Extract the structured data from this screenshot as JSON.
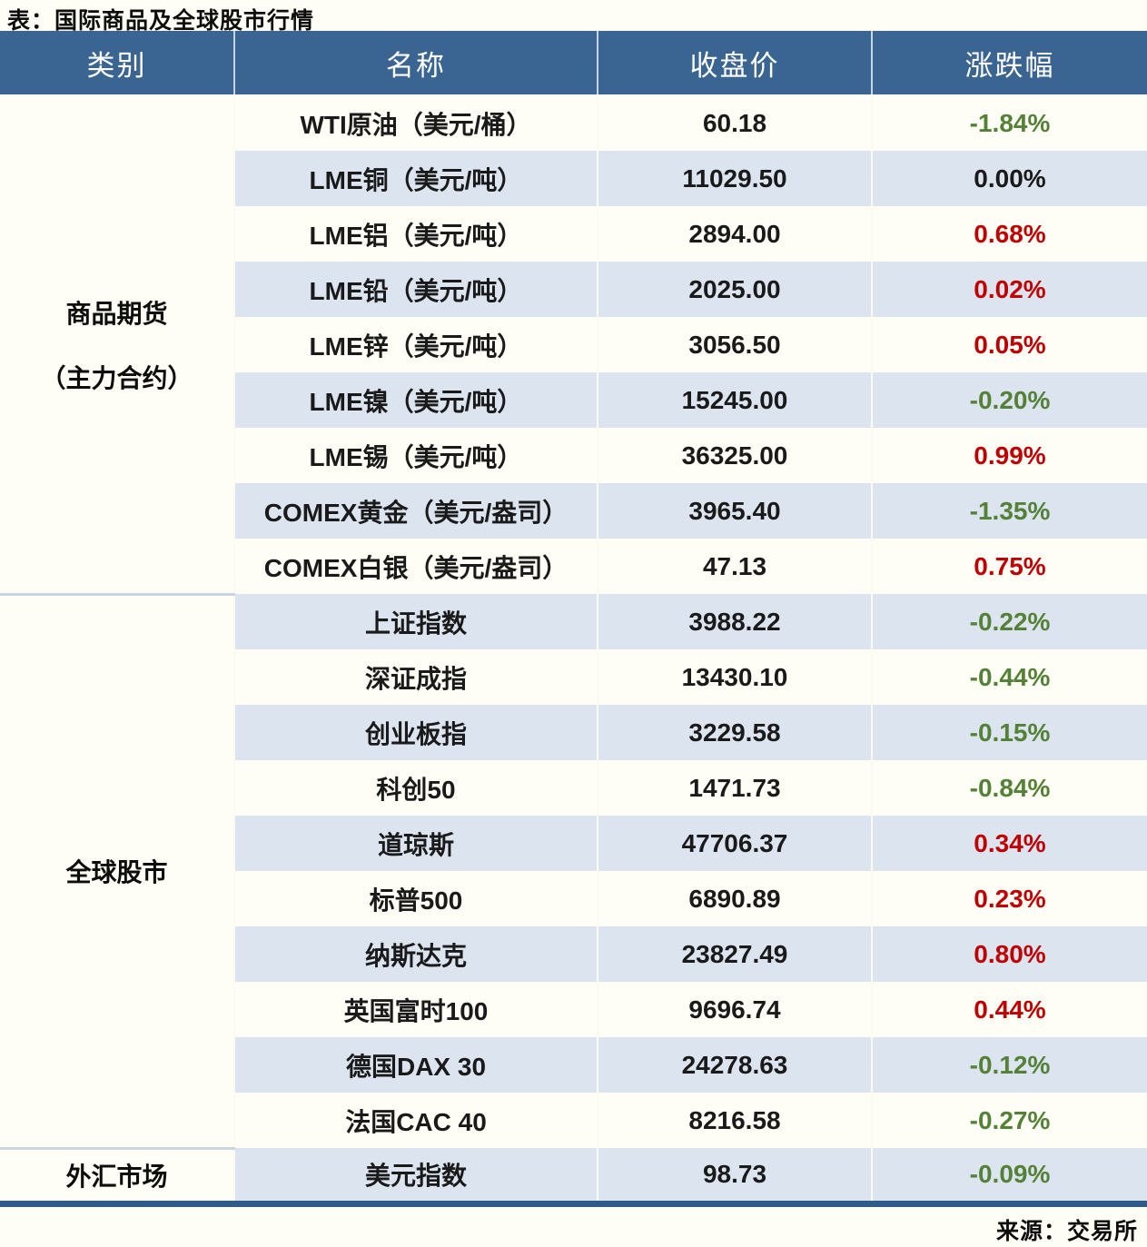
{
  "title": "表：国际商品及全球股市行情",
  "source": "来源：交易所",
  "columns": {
    "category": "类别",
    "name": "名称",
    "close": "收盘价",
    "change": "涨跌幅"
  },
  "category_labels": {
    "commodities": [
      "商品期货",
      "（主力合约）"
    ],
    "stocks": "全球股市",
    "forex": "外汇市场"
  },
  "colors": {
    "up_red": "#C00000",
    "down_green": "#538135",
    "flat_black": "#1A1A1A",
    "header_bg": "#3A6491",
    "header_text": "#FFFFFF",
    "row_alt_bg": "#DCE4F0",
    "row_bg": "#FFFEF6",
    "section_divider": "#C8D4E4",
    "bottom_border": "#2F5B8C"
  },
  "chart_data": {
    "type": "table",
    "title": "国际商品及全球股市行情",
    "columns": [
      "类别",
      "名称",
      "收盘价",
      "涨跌幅"
    ],
    "sections": [
      {
        "category": "商品期货（主力合约）",
        "row_count": 9
      },
      {
        "category": "全球股市",
        "row_count": 10
      },
      {
        "category": "外汇市场",
        "row_count": 1
      }
    ],
    "rows": [
      {
        "category": "商品期货（主力合约）",
        "name": "WTI原油（美元/桶）",
        "close": "60.18",
        "change": "-1.84%",
        "direction": "down"
      },
      {
        "category": "商品期货（主力合约）",
        "name": "LME铜（美元/吨）",
        "close": "11029.50",
        "change": "0.00%",
        "direction": "flat"
      },
      {
        "category": "商品期货（主力合约）",
        "name": "LME铝（美元/吨）",
        "close": "2894.00",
        "change": "0.68%",
        "direction": "up"
      },
      {
        "category": "商品期货（主力合约）",
        "name": "LME铅（美元/吨）",
        "close": "2025.00",
        "change": "0.02%",
        "direction": "up"
      },
      {
        "category": "商品期货（主力合约）",
        "name": "LME锌（美元/吨）",
        "close": "3056.50",
        "change": "0.05%",
        "direction": "up"
      },
      {
        "category": "商品期货（主力合约）",
        "name": "LME镍（美元/吨）",
        "close": "15245.00",
        "change": "-0.20%",
        "direction": "down"
      },
      {
        "category": "商品期货（主力合约）",
        "name": "LME锡（美元/吨）",
        "close": "36325.00",
        "change": "0.99%",
        "direction": "up"
      },
      {
        "category": "商品期货（主力合约）",
        "name": "COMEX黄金（美元/盎司）",
        "close": "3965.40",
        "change": "-1.35%",
        "direction": "down"
      },
      {
        "category": "商品期货（主力合约）",
        "name": "COMEX白银（美元/盎司）",
        "close": "47.13",
        "change": "0.75%",
        "direction": "up"
      },
      {
        "category": "全球股市",
        "name": "上证指数",
        "close": "3988.22",
        "change": "-0.22%",
        "direction": "down"
      },
      {
        "category": "全球股市",
        "name": "深证成指",
        "close": "13430.10",
        "change": "-0.44%",
        "direction": "down"
      },
      {
        "category": "全球股市",
        "name": "创业板指",
        "close": "3229.58",
        "change": "-0.15%",
        "direction": "down"
      },
      {
        "category": "全球股市",
        "name": "科创50",
        "close": "1471.73",
        "change": "-0.84%",
        "direction": "down"
      },
      {
        "category": "全球股市",
        "name": "道琼斯",
        "close": "47706.37",
        "change": "0.34%",
        "direction": "up"
      },
      {
        "category": "全球股市",
        "name": "标普500",
        "close": "6890.89",
        "change": "0.23%",
        "direction": "up"
      },
      {
        "category": "全球股市",
        "name": "纳斯达克",
        "close": "23827.49",
        "change": "0.80%",
        "direction": "up"
      },
      {
        "category": "全球股市",
        "name": "英国富时100",
        "close": "9696.74",
        "change": "0.44%",
        "direction": "up"
      },
      {
        "category": "全球股市",
        "name": "德国DAX 30",
        "close": "24278.63",
        "change": "-0.12%",
        "direction": "down"
      },
      {
        "category": "全球股市",
        "name": "法国CAC 40",
        "close": "8216.58",
        "change": "-0.27%",
        "direction": "down"
      },
      {
        "category": "外汇市场",
        "name": "美元指数",
        "close": "98.73",
        "change": "-0.09%",
        "direction": "down"
      }
    ]
  }
}
